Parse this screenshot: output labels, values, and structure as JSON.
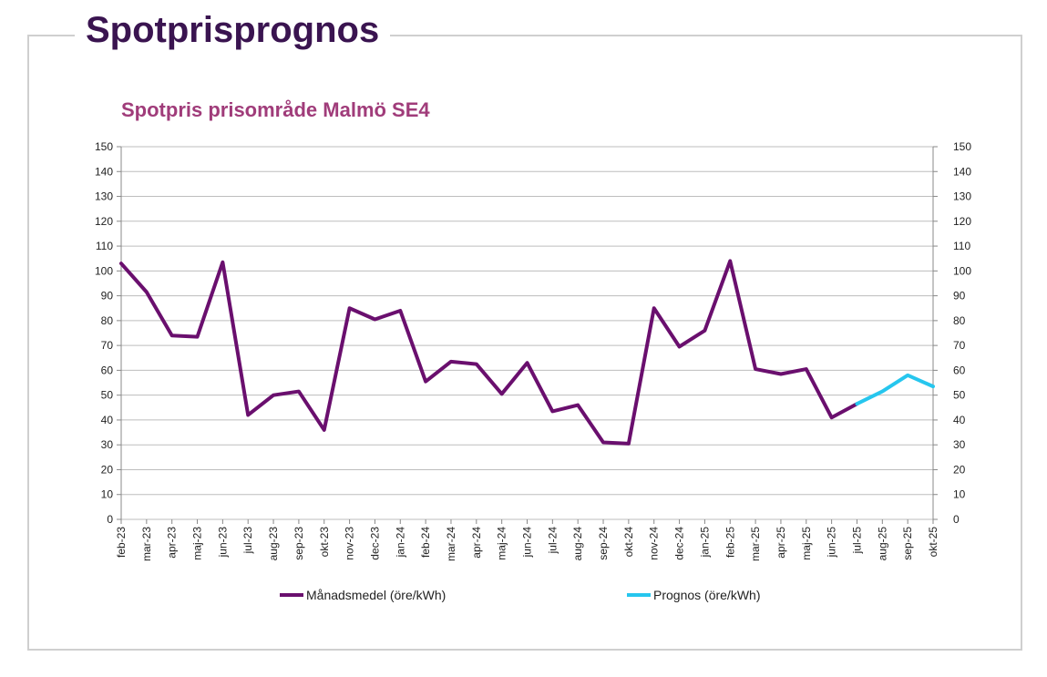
{
  "header": {
    "title": "Spotprisprognos"
  },
  "colors": {
    "history": "#6a0f6e",
    "forecast": "#26c6ee",
    "title": "#a03c7a",
    "grid": "#bdbdbd"
  },
  "chart_data": {
    "type": "line",
    "title": "Spotpris prisområde Malmö SE4",
    "xlabel": "",
    "ylabel": "",
    "ylim": [
      0,
      150
    ],
    "yticks": [
      0,
      10,
      20,
      30,
      40,
      50,
      60,
      70,
      80,
      90,
      100,
      110,
      120,
      130,
      140,
      150
    ],
    "categories": [
      "feb-23",
      "mar-23",
      "apr-23",
      "maj-23",
      "jun-23",
      "jul-23",
      "aug-23",
      "sep-23",
      "okt-23",
      "nov-23",
      "dec-23",
      "jan-24",
      "feb-24",
      "mar-24",
      "apr-24",
      "maj-24",
      "jun-24",
      "jul-24",
      "aug-24",
      "sep-24",
      "okt-24",
      "nov-24",
      "dec-24",
      "jan-25",
      "feb-25",
      "mar-25",
      "apr-25",
      "maj-25",
      "jun-25",
      "jul-25",
      "aug-25",
      "sep-25",
      "okt-25"
    ],
    "series": [
      {
        "name": "Månadsmedel (öre/kWh)",
        "values": [
          103,
          91.5,
          74,
          73.5,
          103.5,
          42,
          50,
          51.5,
          36,
          85,
          80.5,
          84,
          55.5,
          63.5,
          62.5,
          50.5,
          63,
          43.5,
          46,
          31,
          30.5,
          85,
          69.5,
          76,
          104,
          60.5,
          58.5,
          60.5,
          41,
          46.5,
          null,
          null,
          null
        ]
      },
      {
        "name": "Prognos (öre/kWh)",
        "values": [
          null,
          null,
          null,
          null,
          null,
          null,
          null,
          null,
          null,
          null,
          null,
          null,
          null,
          null,
          null,
          null,
          null,
          null,
          null,
          null,
          null,
          null,
          null,
          null,
          null,
          null,
          null,
          null,
          null,
          46.5,
          51.5,
          58,
          53.5
        ]
      }
    ],
    "legend_position": "bottom"
  }
}
